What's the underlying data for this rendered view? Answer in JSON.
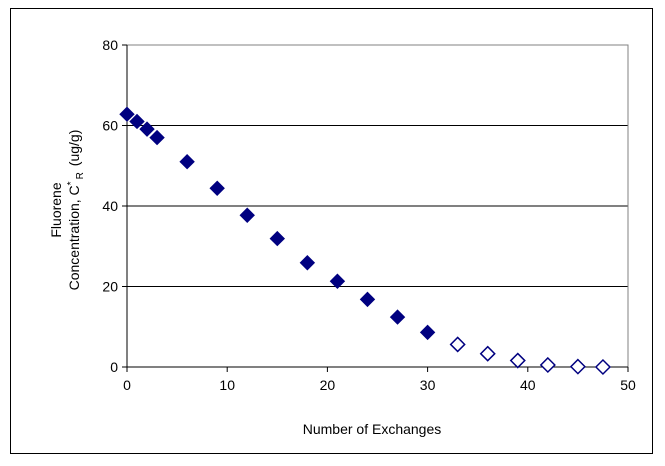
{
  "chart_data": {
    "type": "scatter",
    "title": "",
    "xlabel": "Number of Exchanges",
    "ylabel": {
      "line1": "Fluorene",
      "line2_prefix": "Concentration, C",
      "superscript": "*",
      "subscript": "R",
      "unit": "(ug/g)"
    },
    "xlim": [
      0,
      50
    ],
    "ylim": [
      0,
      80
    ],
    "xticks": [
      0,
      10,
      20,
      30,
      40,
      50
    ],
    "yticks": [
      0,
      20,
      40,
      60,
      80
    ],
    "xtick_labels": [
      "0",
      "10",
      "20",
      "30",
      "40",
      "50"
    ],
    "ytick_labels": [
      "0",
      "20",
      "40",
      "60",
      "80"
    ],
    "grid": "horizontal major gridlines",
    "legend": "none",
    "colors": {
      "marker": "#000080",
      "grid": "#000000",
      "axis": "#808080"
    },
    "series": [
      {
        "marker": "filled-diamond",
        "x": [
          0,
          1,
          2,
          3,
          6,
          9,
          12,
          15,
          18,
          21,
          24,
          27,
          30
        ],
        "y": [
          62.8,
          61.0,
          59.1,
          57.0,
          51.0,
          44.4,
          37.7,
          31.9,
          25.9,
          21.3,
          16.8,
          12.4,
          8.6
        ]
      },
      {
        "marker": "open-diamond",
        "x": [
          33,
          36,
          39,
          42,
          45,
          47.5
        ],
        "y": [
          5.6,
          3.3,
          1.6,
          0.5,
          0.1,
          0.0
        ]
      }
    ]
  }
}
